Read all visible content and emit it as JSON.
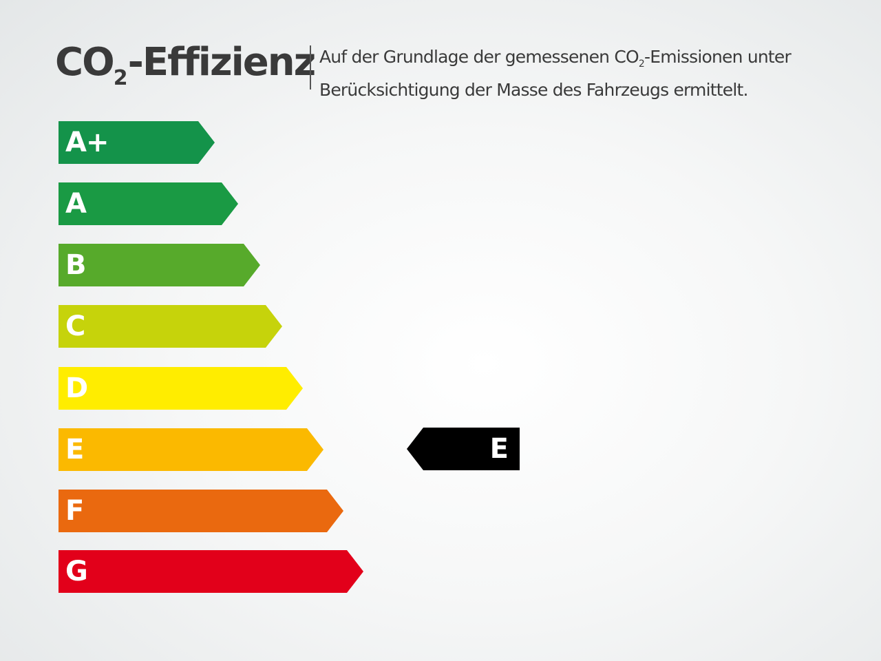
{
  "header": {
    "title_prefix": "CO",
    "title_sub": "2",
    "title_suffix": "-Effizienz",
    "desc_line1_a": "Auf der Grundlage der gemessenen CO",
    "desc_line1_sub": "2",
    "desc_line1_b": "-Emissionen unter",
    "desc_line2": "Berücksichtigung der Masse des Fahrzeugs ermittelt."
  },
  "classes": [
    {
      "label": "A+",
      "color": "#14934a"
    },
    {
      "label": "A",
      "color": "#1a9a44"
    },
    {
      "label": "B",
      "color": "#57aa2b"
    },
    {
      "label": "C",
      "color": "#c6d30b"
    },
    {
      "label": "D",
      "color": "#ffed00"
    },
    {
      "label": "E",
      "color": "#fbb900"
    },
    {
      "label": "F",
      "color": "#ea690f"
    },
    {
      "label": "G",
      "color": "#e2001a"
    }
  ],
  "rating": {
    "label": "E",
    "color": "#000000"
  }
}
